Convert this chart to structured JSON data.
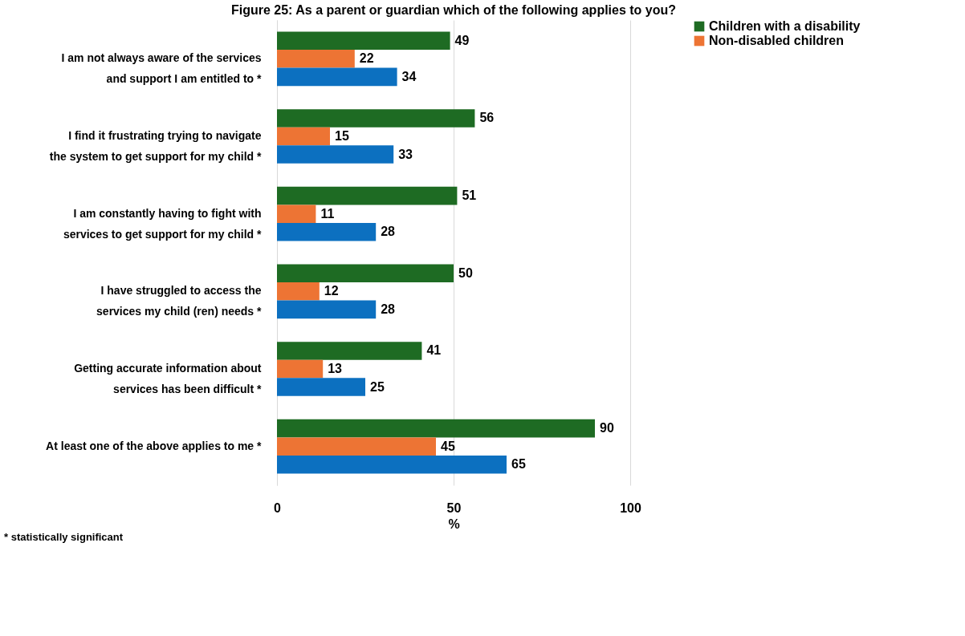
{
  "chart_data": {
    "type": "bar",
    "orientation": "horizontal",
    "title": "Figure 25:  As a parent or guardian which of the following applies to you?",
    "categories": [
      "I am not always aware of the services and support I am entitled to *",
      "I find it frustrating trying to navigate the system to get support for my child *",
      "I am constantly having to fight with services to get support for my child *",
      "I have struggled to access the services my child (ren) needs *",
      "Getting accurate information about services has been difficult *",
      "At least one of the above applies to me *"
    ],
    "series": [
      {
        "name": "Children with a disability",
        "color": "#1e6b23",
        "values": [
          49,
          56,
          51,
          50,
          41,
          90
        ]
      },
      {
        "name": "Non-disabled children",
        "color": "#ed7434",
        "values": [
          22,
          15,
          11,
          12,
          13,
          45
        ]
      },
      {
        "color": "#0c70c0",
        "values": [
          34,
          33,
          28,
          28,
          25,
          65
        ]
      }
    ],
    "xlim": [
      0,
      100
    ],
    "xticks": [
      0,
      50,
      100
    ],
    "xlabel": "%",
    "grid": "x",
    "legend": "right",
    "data_labels": true,
    "annotations": [
      "* statistically significant"
    ]
  }
}
